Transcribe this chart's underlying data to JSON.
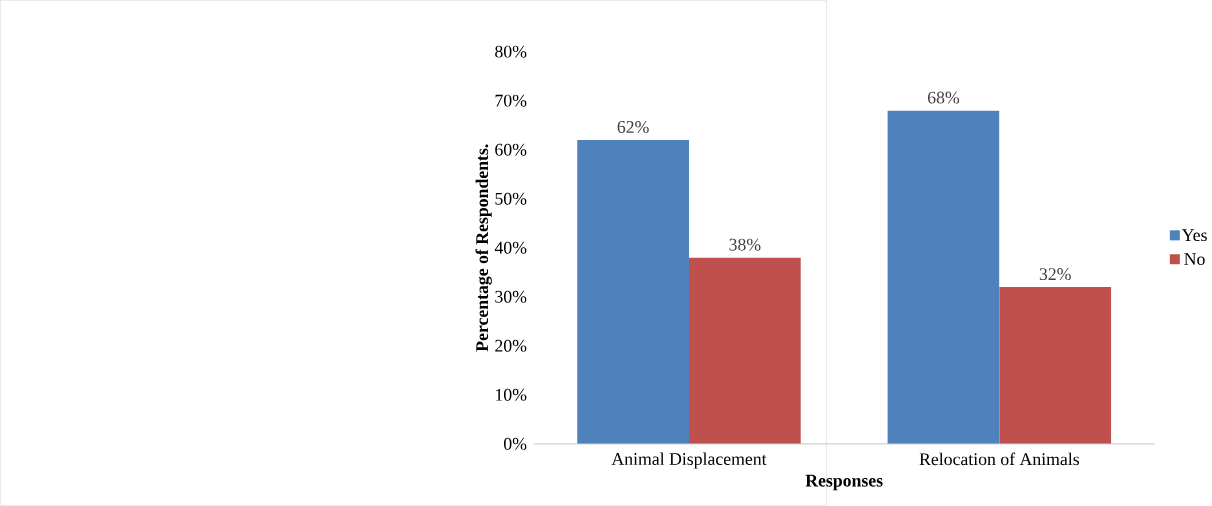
{
  "chart_data": {
    "type": "bar",
    "xlabel": "Responses",
    "ylabel": "Percentage of Respondents.",
    "categories": [
      "Animal Displacement",
      "Relocation of Animals"
    ],
    "series": [
      {
        "name": "Yes",
        "color": "#4f81bd",
        "values": [
          62,
          68
        ],
        "value_labels": [
          "62%",
          "68%"
        ]
      },
      {
        "name": "No",
        "color": "#c0504d",
        "values": [
          38,
          32
        ],
        "value_labels": [
          "38%",
          "32%"
        ]
      }
    ],
    "ylim": [
      0,
      80
    ],
    "yticks": [
      {
        "value": 0,
        "label": "0%"
      },
      {
        "value": 10,
        "label": "10%"
      },
      {
        "value": 20,
        "label": "20%"
      },
      {
        "value": 30,
        "label": "30%"
      },
      {
        "value": 40,
        "label": "40%"
      },
      {
        "value": 50,
        "label": "50%"
      },
      {
        "value": 60,
        "label": "60%"
      },
      {
        "value": 70,
        "label": "70%"
      },
      {
        "value": 80,
        "label": "80%"
      }
    ],
    "grid": false,
    "legend": "right"
  }
}
